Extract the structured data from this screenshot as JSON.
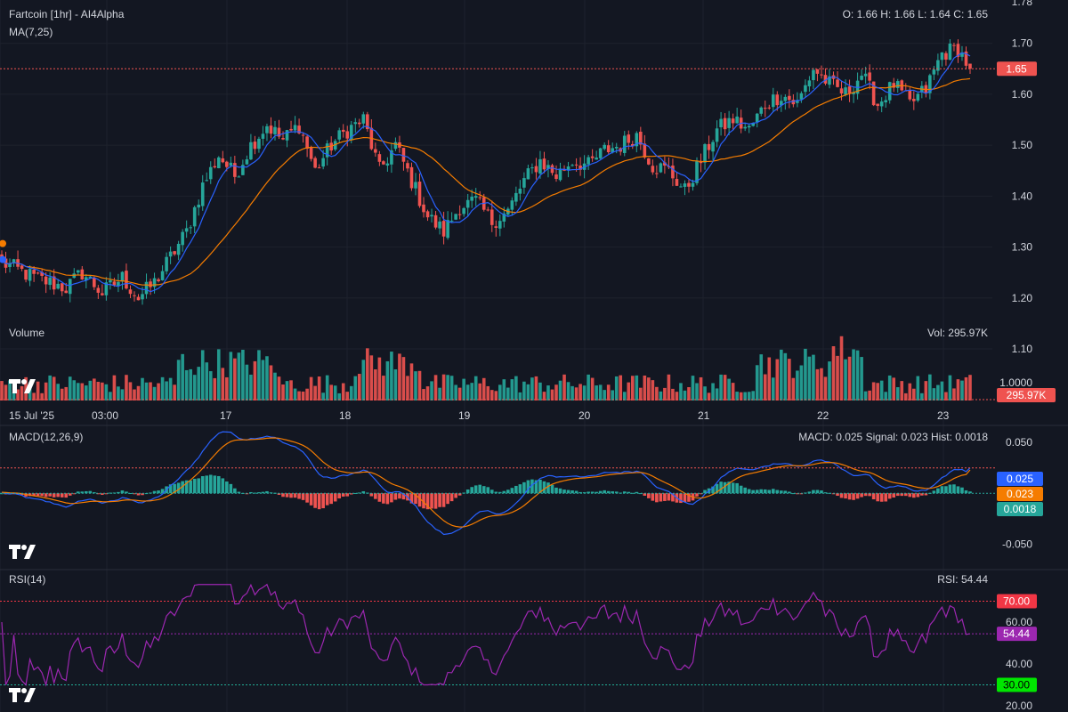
{
  "header": {
    "title": "Fartcoin  [1hr] - AI4Alpha",
    "ma_label": "MA(7,25)",
    "ohlc": "O: 1.66 H: 1.66 L: 1.64 C: 1.65"
  },
  "volume_panel": {
    "label": "Volume",
    "readout": "Vol: 295.97K",
    "last_tag": "295.97K"
  },
  "macd_panel": {
    "label": "MACD(12,26,9)",
    "readout": "MACD: 0.025 Signal: 0.023 Hist: 0.0018"
  },
  "rsi_panel": {
    "label": "RSI(14)",
    "readout": "RSI: 54.44"
  },
  "colors": {
    "background": "#131722",
    "up": "#26a69a",
    "down": "#ef5350",
    "ma_fast": "#2962ff",
    "ma_slow": "#f57c00",
    "rsi": "#9c27b0",
    "ob_line": "#f23645",
    "os_line": "#22ab94",
    "grid": "#1e222d"
  },
  "chart_data": [
    {
      "type": "candlestick",
      "title": "Fartcoin  [1hr] - AI4Alpha",
      "x_tick_labels": [
        "15 Jul '25",
        "03:00",
        "17",
        "18",
        "19",
        "20",
        "21",
        "22",
        "23"
      ],
      "y_ticks": [
        "1.78",
        "1.70",
        "1.60",
        "1.50",
        "1.40",
        "1.30",
        "1.20",
        "1.10",
        "1.0000"
      ],
      "ylim": [
        0.99,
        1.785
      ],
      "last_price": 1.65,
      "last_price_tag": "1.65",
      "ohlc": {
        "open": 1.66,
        "high": 1.66,
        "low": 1.64,
        "close": 1.65
      },
      "close_path": [
        [
          0,
          1.27
        ],
        [
          8,
          1.24
        ],
        [
          16,
          1.22
        ],
        [
          20,
          1.25
        ],
        [
          25,
          1.21
        ],
        [
          30,
          1.24
        ],
        [
          34,
          1.2
        ],
        [
          38,
          1.23
        ],
        [
          42,
          1.28
        ],
        [
          46,
          1.33
        ],
        [
          50,
          1.42
        ],
        [
          54,
          1.48
        ],
        [
          58,
          1.44
        ],
        [
          62,
          1.5
        ],
        [
          66,
          1.54
        ],
        [
          70,
          1.51
        ],
        [
          74,
          1.54
        ],
        [
          78,
          1.45
        ],
        [
          82,
          1.5
        ],
        [
          86,
          1.53
        ],
        [
          90,
          1.55
        ],
        [
          94,
          1.45
        ],
        [
          98,
          1.5
        ],
        [
          102,
          1.43
        ],
        [
          106,
          1.36
        ],
        [
          110,
          1.33
        ],
        [
          114,
          1.38
        ],
        [
          118,
          1.39
        ],
        [
          122,
          1.35
        ],
        [
          126,
          1.37
        ],
        [
          130,
          1.43
        ],
        [
          134,
          1.47
        ],
        [
          138,
          1.44
        ],
        [
          142,
          1.47
        ],
        [
          146,
          1.46
        ],
        [
          150,
          1.49
        ],
        [
          154,
          1.5
        ],
        [
          158,
          1.52
        ],
        [
          162,
          1.46
        ],
        [
          166,
          1.45
        ],
        [
          170,
          1.41
        ],
        [
          174,
          1.47
        ],
        [
          178,
          1.53
        ],
        [
          182,
          1.55
        ],
        [
          186,
          1.53
        ],
        [
          190,
          1.58
        ],
        [
          194,
          1.6
        ],
        [
          198,
          1.58
        ],
        [
          202,
          1.65
        ],
        [
          206,
          1.62
        ],
        [
          210,
          1.6
        ],
        [
          214,
          1.64
        ],
        [
          218,
          1.58
        ],
        [
          222,
          1.62
        ],
        [
          226,
          1.58
        ],
        [
          230,
          1.61
        ],
        [
          234,
          1.68
        ],
        [
          238,
          1.69
        ],
        [
          241,
          1.65
        ]
      ],
      "series": [
        {
          "name": "MA 7",
          "color": "#2962ff"
        },
        {
          "name": "MA 25",
          "color": "#f57c00"
        }
      ]
    },
    {
      "type": "bar",
      "title": "Volume",
      "value_label": "Vol: 295.97K",
      "last_value": "295.97K",
      "peak_regions_hours": [
        [
          44,
          68
        ],
        [
          88,
          104
        ],
        [
          188,
          214
        ]
      ]
    },
    {
      "type": "line",
      "title": "MACD(12,26,9)",
      "y_ticks": [
        "0.050",
        "-0.050"
      ],
      "ylim": [
        -0.075,
        0.065
      ],
      "last_values": {
        "macd": 0.025,
        "signal": 0.023,
        "hist": 0.0018
      },
      "last_value_tags": {
        "macd": "0.025",
        "signal": "0.023",
        "hist": "0.0018"
      },
      "series": [
        {
          "name": "MACD",
          "color": "#2962ff"
        },
        {
          "name": "Signal",
          "color": "#f57c00"
        },
        {
          "name": "Hist",
          "color": "#26a69a"
        }
      ]
    },
    {
      "type": "line",
      "title": "RSI(14)",
      "y_ticks": [
        "60.00",
        "40.00",
        "20.00"
      ],
      "ylim": [
        17,
        83
      ],
      "overbought": 70,
      "oversold": 30,
      "overbought_tag": "70.00",
      "oversold_tag": "30.00",
      "last_value": 54.44,
      "last_value_tag": "54.44",
      "series": [
        {
          "name": "RSI",
          "color": "#9c27b0"
        }
      ]
    }
  ]
}
